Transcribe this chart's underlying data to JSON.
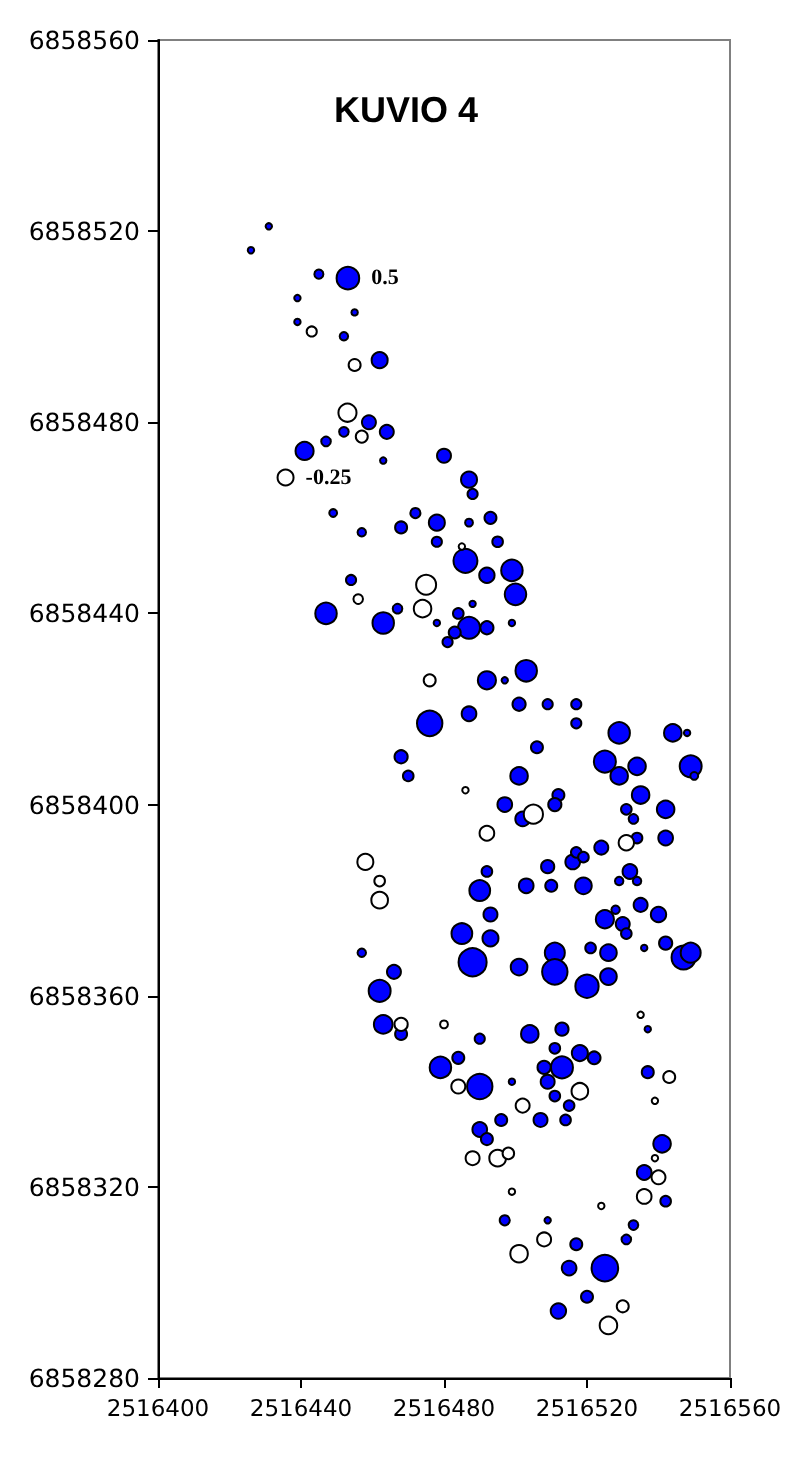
{
  "chart_data": {
    "type": "bubble",
    "title": "KUVIO 4",
    "xlim": [
      2516400,
      2516560
    ],
    "xticks": [
      2516400,
      2516440,
      2516480,
      2516520,
      2516560
    ],
    "ylim": [
      6858280,
      6858560
    ],
    "yticks": [
      6858280,
      6858320,
      6858360,
      6858400,
      6858440,
      6858480,
      6858520,
      6858560
    ],
    "size_legend": [
      0.5,
      {
        "value": 0.25,
        "label": "-0.25"
      }
    ],
    "series": [
      {
        "color": "#0000ff",
        "x": [
          2516431,
          2516426,
          2516445,
          2516439,
          2516455,
          2516439,
          2516452,
          2516462,
          2516459,
          2516464,
          2516452,
          2516447,
          2516441,
          2516463,
          2516480,
          2516487,
          2516488,
          2516449,
          2516472,
          2516478,
          2516468,
          2516487,
          2516493,
          2516457,
          2516478,
          2516495,
          2516486,
          2516499,
          2516492,
          2516454,
          2516500,
          2516488,
          2516447,
          2516467,
          2516463,
          2516484,
          2516478,
          2516487,
          2516483,
          2516492,
          2516499,
          2516481,
          2516492,
          2516497,
          2516503,
          2516501,
          2516509,
          2516517,
          2516517,
          2516487,
          2516476,
          2516506,
          2516468,
          2516525,
          2516529,
          2516544,
          2516548,
          2516534,
          2516549,
          2516550,
          2516470,
          2516501,
          2516529,
          2516512,
          2516511,
          2516497,
          2516535,
          2516542,
          2516531,
          2516502,
          2516533,
          2516534,
          2516542,
          2516492,
          2516509,
          2516516,
          2516517,
          2516519,
          2516524,
          2516532,
          2516529,
          2516534,
          2516490,
          2516503,
          2516510,
          2516519,
          2516493,
          2516525,
          2516528,
          2516535,
          2516540,
          2516485,
          2516493,
          2516530,
          2516531,
          2516542,
          2516536,
          2516457,
          2516488,
          2516501,
          2516511,
          2516511,
          2516521,
          2516526,
          2516520,
          2516526,
          2516547,
          2516549,
          2516466,
          2516462,
          2516463,
          2516468,
          2516504,
          2516513,
          2516537,
          2516490,
          2516484,
          2516479,
          2516490,
          2516499,
          2516511,
          2516518,
          2516522,
          2516508,
          2516513,
          2516509,
          2516511,
          2516515,
          2516496,
          2516507,
          2516514,
          2516490,
          2516492,
          2516537,
          2516541,
          2516536,
          2516542,
          2516497,
          2516509,
          2516533,
          2516531,
          2516517,
          2516515,
          2516525,
          2516520,
          2516512
        ],
        "values": [
          6858521,
          6858516,
          6858511,
          6858506,
          6858503,
          6858501,
          6858498,
          6858493,
          6858480,
          6858478,
          6858478,
          6858476,
          6858474,
          6858472,
          6858473,
          6858468,
          6858465,
          6858461,
          6858461,
          6858459,
          6858458,
          6858459,
          6858460,
          6858457,
          6858455,
          6858455,
          6858451,
          6858449,
          6858448,
          6858447,
          6858444,
          6858442,
          6858440,
          6858441,
          6858438,
          6858440,
          6858438,
          6858437,
          6858436,
          6858437,
          6858438,
          6858434,
          6858426,
          6858426,
          6858428,
          6858421,
          6858421,
          6858421,
          6858417,
          6858419,
          6858417,
          6858412,
          6858410,
          6858409,
          6858415,
          6858415,
          6858415,
          6858408,
          6858408,
          6858406,
          6858406,
          6858406,
          6858406,
          6858402,
          6858400,
          6858400,
          6858402,
          6858399,
          6858399,
          6858397,
          6858397,
          6858393,
          6858393,
          6858386,
          6858387,
          6858388,
          6858390,
          6858389,
          6858391,
          6858386,
          6858384,
          6858384,
          6858382,
          6858383,
          6858383,
          6858383,
          6858377,
          6858376,
          6858378,
          6858379,
          6858377,
          6858373,
          6858372,
          6858375,
          6858373,
          6858371,
          6858370,
          6858369,
          6858367,
          6858366,
          6858369,
          6858365,
          6858370,
          6858369,
          6858362,
          6858364,
          6858368,
          6858369,
          6858365,
          6858361,
          6858354,
          6858352,
          6858352,
          6858353,
          6858353,
          6858351,
          6858347,
          6858345,
          6858341,
          6858342,
          6858349,
          6858348,
          6858347,
          6858345,
          6858345,
          6858342,
          6858339,
          6858337,
          6858334,
          6858334,
          6858334,
          6858332,
          6858330,
          6858344,
          6858329,
          6858323,
          6858317,
          6858313,
          6858313,
          6858312,
          6858309,
          6858308,
          6858303,
          6858303,
          6858297,
          6858294
        ],
        "sizes": [
          0.04,
          0.04,
          0.08,
          0.04,
          0.04,
          0.04,
          0.07,
          0.25,
          0.19,
          0.19,
          0.09,
          0.09,
          0.32,
          0.04,
          0.19,
          0.25,
          0.1,
          0.06,
          0.1,
          0.25,
          0.14,
          0.06,
          0.14,
          0.07,
          0.1,
          0.11,
          0.56,
          0.45,
          0.23,
          0.1,
          0.45,
          0.04,
          0.45,
          0.09,
          0.45,
          0.11,
          0.04,
          0.47,
          0.14,
          0.17,
          0.04,
          0.1,
          0.32,
          0.04,
          0.45,
          0.17,
          0.1,
          0.1,
          0.1,
          0.21,
          0.63,
          0.14,
          0.17,
          0.47,
          0.45,
          0.3,
          0.04,
          0.3,
          0.47,
          0.06,
          0.11,
          0.3,
          0.3,
          0.14,
          0.17,
          0.21,
          0.3,
          0.3,
          0.11,
          0.21,
          0.09,
          0.11,
          0.21,
          0.11,
          0.17,
          0.21,
          0.11,
          0.11,
          0.19,
          0.21,
          0.07,
          0.07,
          0.42,
          0.21,
          0.14,
          0.27,
          0.19,
          0.32,
          0.07,
          0.19,
          0.23,
          0.42,
          0.25,
          0.19,
          0.11,
          0.17,
          0.04,
          0.07,
          0.77,
          0.27,
          0.39,
          0.63,
          0.11,
          0.27,
          0.53,
          0.27,
          0.56,
          0.39,
          0.19,
          0.47,
          0.34,
          0.14,
          0.3,
          0.17,
          0.04,
          0.1,
          0.14,
          0.45,
          0.63,
          0.04,
          0.11,
          0.25,
          0.16,
          0.17,
          0.47,
          0.19,
          0.11,
          0.11,
          0.14,
          0.19,
          0.11,
          0.21,
          0.14,
          0.14,
          0.3,
          0.21,
          0.11,
          0.1,
          0.04,
          0.09,
          0.09,
          0.14,
          0.21,
          0.69,
          0.14,
          0.23
        ]
      },
      {
        "color": "#ffffff",
        "x": [
          2516443,
          2516455,
          2516453,
          2516457,
          2516485,
          2516475,
          2516456,
          2516474,
          2516476,
          2516486,
          2516505,
          2516492,
          2516531,
          2516458,
          2516462,
          2516462,
          2516468,
          2516480,
          2516535,
          2516484,
          2516518,
          2516502,
          2516543,
          2516539,
          2516488,
          2516495,
          2516498,
          2516539,
          2516540,
          2516536,
          2516499,
          2516524,
          2516508,
          2516501,
          2516530,
          2516526
        ],
        "values": [
          6858499,
          6858492,
          6858482,
          6858477,
          6858454,
          6858446,
          6858443,
          6858441,
          6858426,
          6858403,
          6858398,
          6858394,
          6858392,
          6858388,
          6858384,
          6858380,
          6858354,
          6858354,
          6858356,
          6858341,
          6858340,
          6858337,
          6858343,
          6858338,
          6858326,
          6858326,
          6858327,
          6858326,
          6858322,
          6858318,
          6858319,
          6858316,
          6858309,
          6858306,
          6858295,
          6858291
        ],
        "sizes": [
          0.1,
          0.14,
          0.32,
          0.14,
          0.04,
          0.39,
          0.09,
          0.3,
          0.14,
          0.04,
          0.36,
          0.21,
          0.23,
          0.25,
          0.11,
          0.27,
          0.17,
          0.06,
          0.04,
          0.19,
          0.27,
          0.19,
          0.14,
          0.04,
          0.19,
          0.27,
          0.13,
          0.04,
          0.19,
          0.21,
          0.04,
          0.04,
          0.19,
          0.3,
          0.14,
          0.3
        ]
      }
    ]
  }
}
